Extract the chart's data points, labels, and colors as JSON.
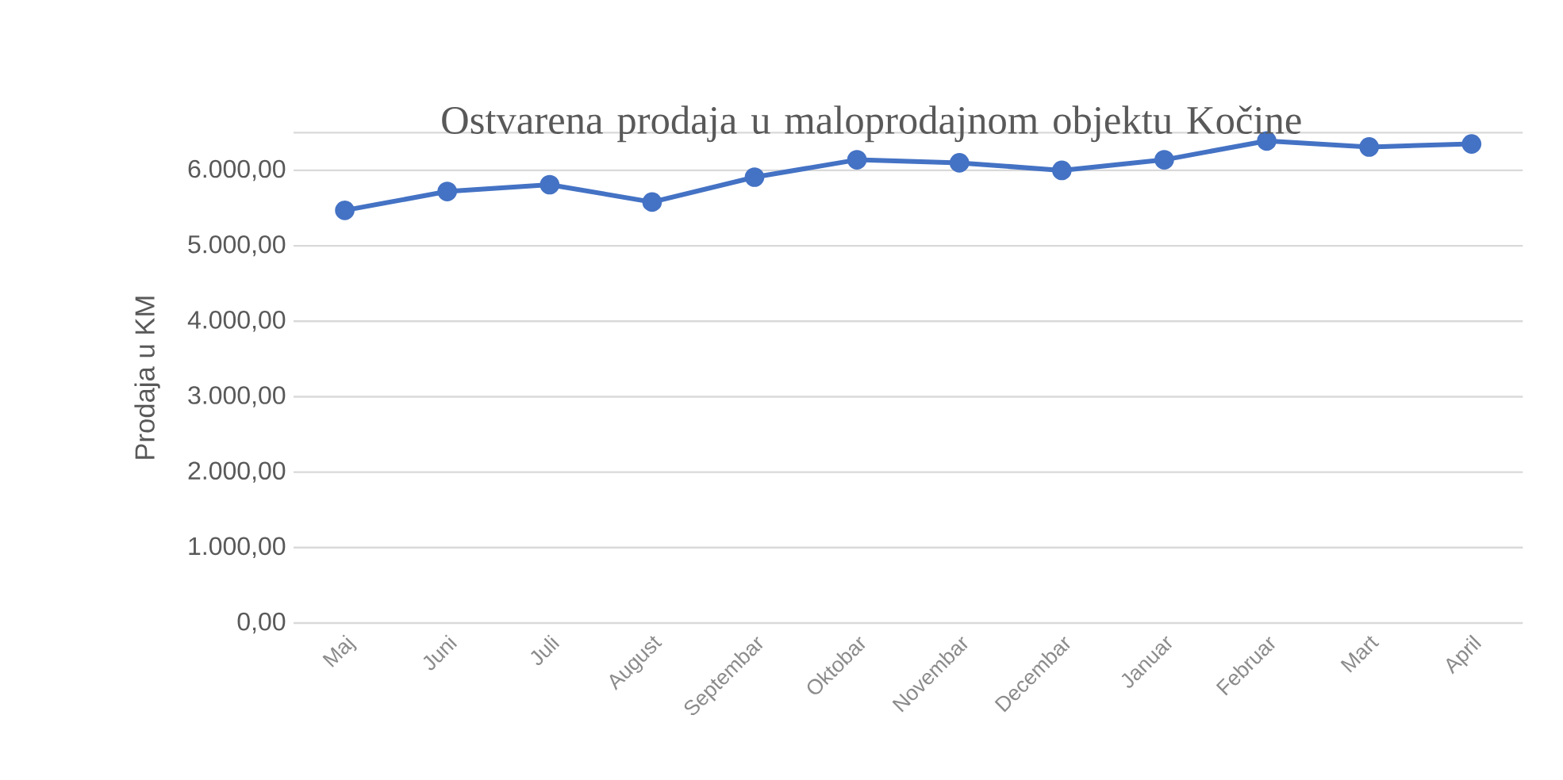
{
  "chart_data": {
    "type": "line",
    "title": "Ostvarena prodaja u maloprodajnom objektu Kočine",
    "ylabel": "Prodaja u KM",
    "categories": [
      "Maj",
      "Juni",
      "Juli",
      "August",
      "Septembar",
      "Oktobar",
      "Novembar",
      "Decembar",
      "Januar",
      "Februar",
      "Mart",
      "April"
    ],
    "series": [
      {
        "color": "#4472c4",
        "values": [
          5470,
          5720,
          5810,
          5580,
          5910,
          6140,
          6100,
          6000,
          6140,
          6390,
          6310,
          6350
        ]
      }
    ],
    "ylim": [
      0,
      6500
    ],
    "yticks": [
      {
        "value": 0,
        "label": "0,00"
      },
      {
        "value": 1000,
        "label": "1.000,00"
      },
      {
        "value": 2000,
        "label": "2.000,00"
      },
      {
        "value": 3000,
        "label": "3.000,00"
      },
      {
        "value": 4000,
        "label": "4.000,00"
      },
      {
        "value": 5000,
        "label": "5.000,00"
      },
      {
        "value": 6000,
        "label": "6.000,00"
      },
      {
        "value": 6500,
        "label": null
      }
    ],
    "grid": "y",
    "marker": "circle",
    "line_style": "solid"
  }
}
